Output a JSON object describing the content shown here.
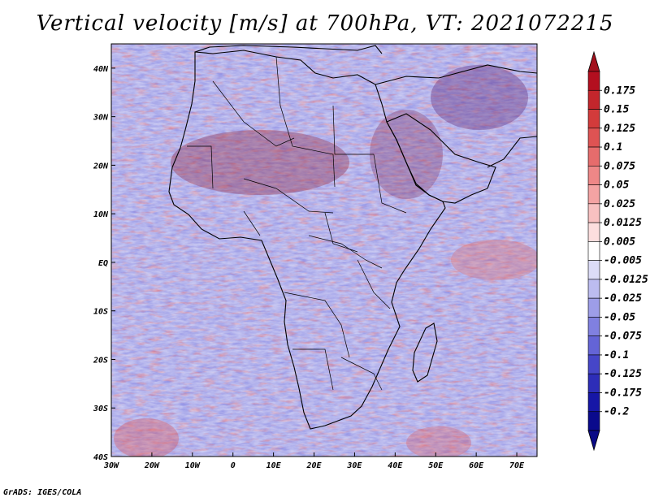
{
  "title": "Vertical velocity [m/s] at 700hPa, VT: 2021072215",
  "footer": "GrADS: IGES/COLA",
  "map": {
    "lon_labels": [
      "30W",
      "20W",
      "10W",
      "0",
      "10E",
      "20E",
      "30E",
      "40E",
      "50E",
      "60E",
      "70E"
    ],
    "lat_labels": [
      "40N",
      "30N",
      "20N",
      "10N",
      "EQ",
      "10S",
      "20S",
      "30S",
      "40S"
    ],
    "lon_range": [
      -30,
      75
    ],
    "lat_range": [
      -40,
      45
    ],
    "field": "vertical velocity",
    "level": "700hPa",
    "valid_time": "2021072215"
  },
  "colorbar": {
    "labels": [
      "0.175",
      "0.15",
      "0.125",
      "0.1",
      "0.075",
      "0.05",
      "0.025",
      "0.0125",
      "0.005",
      "-0.005",
      "-0.0125",
      "-0.025",
      "-0.05",
      "-0.075",
      "-0.1",
      "-0.125",
      "-0.175",
      "-0.2"
    ],
    "colors": [
      "#b30f1f",
      "#c3262c",
      "#d33b3b",
      "#de5353",
      "#e66c6c",
      "#ee8787",
      "#f4a3a3",
      "#f8c1c1",
      "#fcdede",
      "#ffffff",
      "#dcdcf7",
      "#bcbcf0",
      "#9d9de8",
      "#8080e0",
      "#6464d6",
      "#4646c8",
      "#2d2db8",
      "#1616a6",
      "#0a0a8c"
    ],
    "top_arrow_color": "#a3101c",
    "bottom_arrow_color": "#0b0b86"
  }
}
